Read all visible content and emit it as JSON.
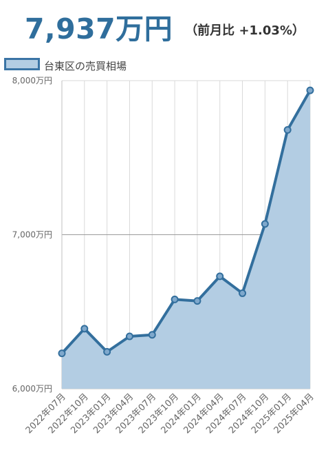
{
  "headline": {
    "value": "7,937万円",
    "change": "（前月比 +1.03%）"
  },
  "colors": {
    "accent": "#2f6e9c",
    "line": "#336f9d",
    "fill": "#b3cde3",
    "grid": "#d9d9d9",
    "midline": "#9a9a9a"
  },
  "chart_data": {
    "type": "area",
    "series": [
      {
        "name": "台東区の売買相場",
        "values": [
          6230,
          6390,
          6240,
          6340,
          6350,
          6580,
          6570,
          6730,
          6620,
          7070,
          7680,
          7937
        ]
      }
    ],
    "x_ticks": [
      "2022年07月",
      "2022年10月",
      "2023年01月",
      "2023年04月",
      "2023年07月",
      "2023年10月",
      "2024年01月",
      "2024年04月",
      "2024年07月",
      "2024年10月",
      "2025年01月",
      "2025年04月"
    ],
    "y_ticks": [
      "6,000万円",
      "7,000万円",
      "8,000万円"
    ],
    "y_tick_values": [
      6000,
      7000,
      8000
    ],
    "ylim": [
      6000,
      8000
    ],
    "legend_position": "top-left",
    "grid": true
  }
}
